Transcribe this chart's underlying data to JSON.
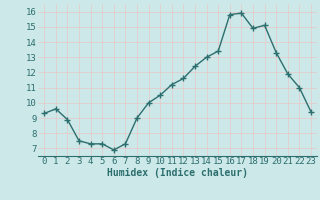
{
  "x": [
    0,
    1,
    2,
    3,
    4,
    5,
    6,
    7,
    8,
    9,
    10,
    11,
    12,
    13,
    14,
    15,
    16,
    17,
    18,
    19,
    20,
    21,
    22,
    23
  ],
  "y": [
    9.3,
    9.6,
    8.9,
    7.5,
    7.3,
    7.3,
    6.9,
    7.3,
    9.0,
    10.0,
    10.5,
    11.2,
    11.6,
    12.4,
    13.0,
    13.4,
    15.8,
    15.9,
    14.9,
    15.1,
    13.3,
    11.9,
    11.0,
    9.4
  ],
  "xlabel": "Humidex (Indice chaleur)",
  "ylim": [
    6.5,
    16.5
  ],
  "xlim": [
    -0.5,
    23.5
  ],
  "yticks": [
    7,
    8,
    9,
    10,
    11,
    12,
    13,
    14,
    15,
    16
  ],
  "xticks": [
    0,
    1,
    2,
    3,
    4,
    5,
    6,
    7,
    8,
    9,
    10,
    11,
    12,
    13,
    14,
    15,
    16,
    17,
    18,
    19,
    20,
    21,
    22,
    23
  ],
  "line_color": "#2d6e6e",
  "marker_color": "#2d6e6e",
  "bg_color": "#cce8e8",
  "grid_color_minor": "#e8c8c8",
  "grid_color_major": "#e8c8c8",
  "xlabel_fontsize": 7,
  "tick_fontsize": 6.5
}
